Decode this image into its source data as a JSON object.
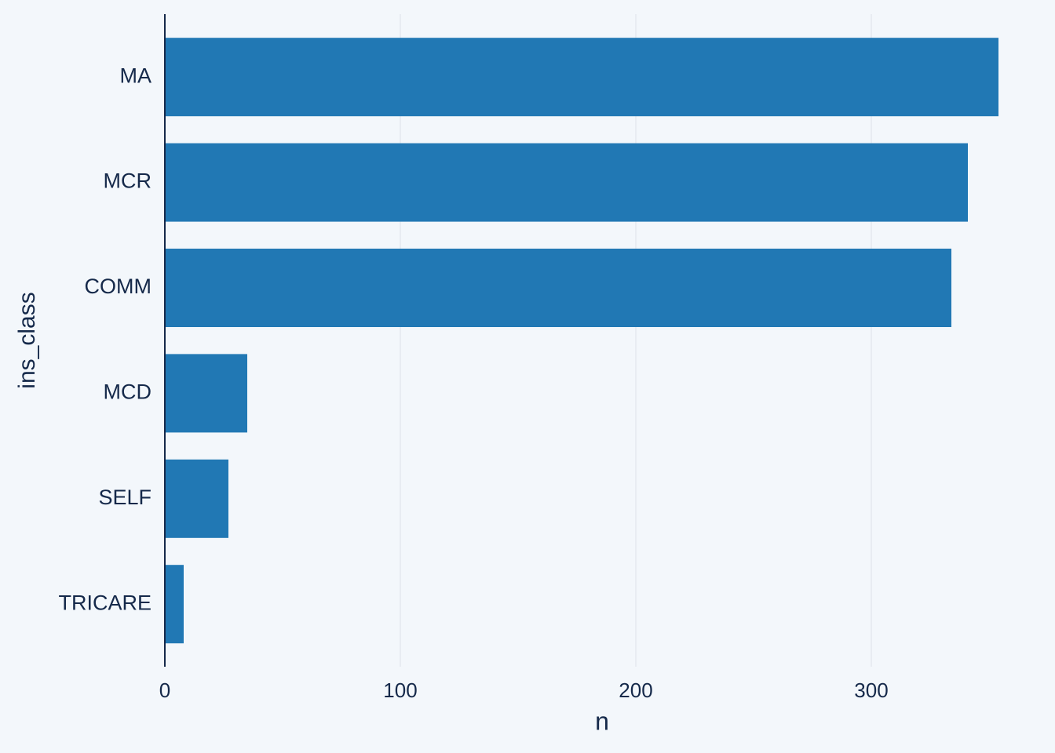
{
  "chart_data": {
    "type": "bar",
    "orientation": "horizontal",
    "categories": [
      "MA",
      "MCR",
      "COMM",
      "MCD",
      "SELF",
      "TRICARE"
    ],
    "values": [
      354,
      341,
      334,
      35,
      27,
      8
    ],
    "color": "#2178b4",
    "x_label": "n",
    "y_label": "ins_class",
    "xlim": [
      0,
      371
    ],
    "xticks": [
      0,
      100,
      200,
      300
    ],
    "grid": true
  }
}
